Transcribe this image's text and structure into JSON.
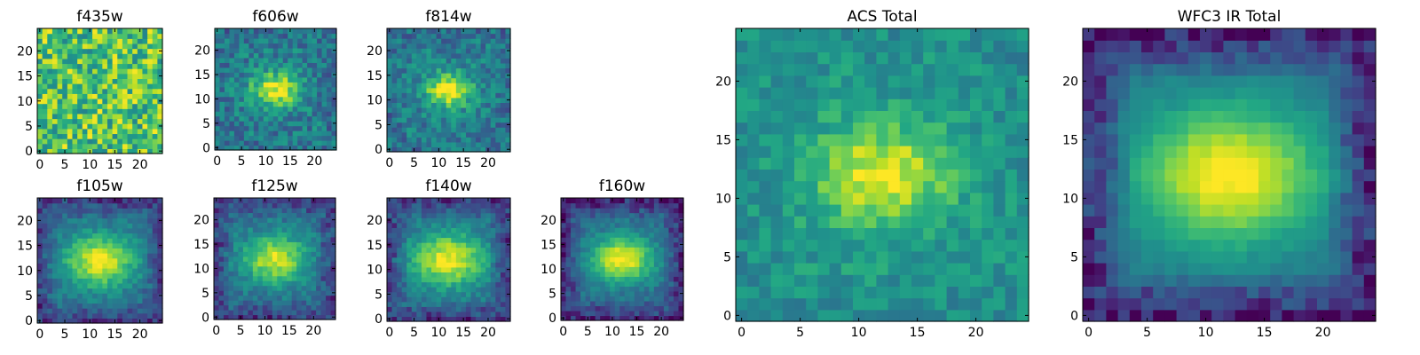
{
  "chart_data": [
    {
      "type": "heatmap",
      "title": "f435w",
      "xticks": [
        0,
        5,
        10,
        15,
        20
      ],
      "yticks": [
        0,
        5,
        10,
        15,
        20
      ],
      "xlim": [
        -0.5,
        24.5
      ],
      "ylim": [
        -0.5,
        24.5
      ],
      "grid_size": 25,
      "source_peak": [
        12,
        12
      ],
      "source_sigma": 0,
      "source_amp": 0,
      "noise": 0.55,
      "background": 0.72,
      "edge_dim": 0.0,
      "seed": 11
    },
    {
      "type": "heatmap",
      "title": "f606w",
      "xticks": [
        0,
        5,
        10,
        15,
        20
      ],
      "yticks": [
        0,
        5,
        10,
        15,
        20
      ],
      "xlim": [
        -0.5,
        24.5
      ],
      "ylim": [
        -0.5,
        24.5
      ],
      "grid_size": 25,
      "source_peak": [
        12,
        12
      ],
      "source_sigma": 2.6,
      "source_amp": 0.55,
      "noise": 0.32,
      "background": 0.42,
      "edge_dim": 0.05,
      "seed": 23
    },
    {
      "type": "heatmap",
      "title": "f814w",
      "xticks": [
        0,
        5,
        10,
        15,
        20
      ],
      "yticks": [
        0,
        5,
        10,
        15,
        20
      ],
      "xlim": [
        -0.5,
        24.5
      ],
      "ylim": [
        -0.5,
        24.5
      ],
      "grid_size": 25,
      "source_peak": [
        12,
        12
      ],
      "source_sigma": 2.4,
      "source_amp": 0.6,
      "noise": 0.3,
      "background": 0.42,
      "edge_dim": 0.05,
      "seed": 37
    },
    {
      "type": "heatmap",
      "title": "f105w",
      "xticks": [
        0,
        5,
        10,
        15,
        20
      ],
      "yticks": [
        0,
        5,
        10,
        15,
        20
      ],
      "xlim": [
        -0.5,
        24.5
      ],
      "ylim": [
        -0.5,
        24.5
      ],
      "grid_size": 25,
      "source_peak": [
        12,
        12
      ],
      "source_sigma": 3.6,
      "source_amp": 0.6,
      "noise": 0.18,
      "background": 0.38,
      "edge_dim": 0.2,
      "seed": 41
    },
    {
      "type": "heatmap",
      "title": "f125w",
      "xticks": [
        0,
        5,
        10,
        15,
        20
      ],
      "yticks": [
        0,
        5,
        10,
        15,
        20
      ],
      "xlim": [
        -0.5,
        24.5
      ],
      "ylim": [
        -0.5,
        24.5
      ],
      "grid_size": 25,
      "source_peak": [
        12,
        12
      ],
      "source_sigma": 3.4,
      "source_amp": 0.55,
      "noise": 0.2,
      "background": 0.38,
      "edge_dim": 0.2,
      "seed": 53
    },
    {
      "type": "heatmap",
      "title": "f140w",
      "xticks": [
        0,
        5,
        10,
        15,
        20
      ],
      "yticks": [
        0,
        5,
        10,
        15,
        20
      ],
      "xlim": [
        -0.5,
        24.5
      ],
      "ylim": [
        -0.5,
        24.5
      ],
      "grid_size": 25,
      "source_peak": [
        12,
        12
      ],
      "source_sigma": 3.8,
      "source_amp": 0.6,
      "noise": 0.18,
      "background": 0.38,
      "edge_dim": 0.22,
      "seed": 67
    },
    {
      "type": "heatmap",
      "title": "f160w",
      "xticks": [
        0,
        5,
        10,
        15,
        20
      ],
      "yticks": [
        0,
        5,
        10,
        15,
        20
      ],
      "xlim": [
        -0.5,
        24.5
      ],
      "ylim": [
        -0.5,
        24.5
      ],
      "grid_size": 25,
      "source_peak": [
        12,
        12
      ],
      "source_sigma": 3.2,
      "source_amp": 0.65,
      "noise": 0.16,
      "background": 0.36,
      "edge_dim": 0.25,
      "seed": 79
    },
    {
      "type": "heatmap",
      "title": "ACS Total",
      "xticks": [
        0,
        5,
        10,
        15,
        20
      ],
      "yticks": [
        0,
        5,
        10,
        15,
        20
      ],
      "xlim": [
        -0.5,
        24.5
      ],
      "ylim": [
        -0.5,
        24.5
      ],
      "grid_size": 25,
      "source_peak": [
        12,
        12
      ],
      "source_sigma": 3.0,
      "source_amp": 0.45,
      "noise": 0.22,
      "background": 0.52,
      "edge_dim": 0.03,
      "seed": 97
    },
    {
      "type": "heatmap",
      "title": "WFC3 IR Total",
      "xticks": [
        0,
        5,
        10,
        15,
        20
      ],
      "yticks": [
        0,
        5,
        10,
        15,
        20
      ],
      "xlim": [
        -0.5,
        24.5
      ],
      "ylim": [
        -0.5,
        24.5
      ],
      "grid_size": 25,
      "source_peak": [
        12,
        12
      ],
      "source_sigma": 4.0,
      "source_amp": 0.62,
      "noise": 0.07,
      "background": 0.4,
      "edge_dim": 0.32,
      "seed": 113
    }
  ],
  "colormap": "viridis"
}
